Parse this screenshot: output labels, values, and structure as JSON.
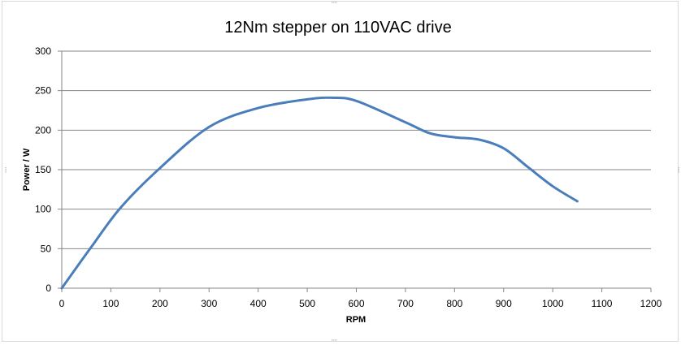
{
  "chart_data": {
    "type": "line",
    "title": "12Nm stepper on 110VAC drive",
    "xlabel": "RPM",
    "ylabel": "Power / W",
    "xlim": [
      0,
      1200
    ],
    "ylim": [
      0,
      300
    ],
    "xticks": [
      "0",
      "100",
      "200",
      "300",
      "400",
      "500",
      "600",
      "700",
      "800",
      "900",
      "1000",
      "1100",
      "1200"
    ],
    "yticks": [
      "0",
      "50",
      "100",
      "150",
      "200",
      "250",
      "300"
    ],
    "grid": {
      "horizontal": true,
      "vertical": false
    },
    "legend": "none",
    "series": [
      {
        "color": "#4a7ebb",
        "x": [
          0,
          60,
          120,
          200,
          300,
          400,
          500,
          550,
          600,
          700,
          750,
          800,
          850,
          900,
          950,
          1000,
          1050
        ],
        "y": [
          0,
          52,
          102,
          152,
          204,
          228,
          239,
          241,
          237,
          210,
          196,
          191,
          188,
          177,
          153,
          129,
          110
        ]
      }
    ]
  },
  "window": {
    "top_handle": "····",
    "bottom_handle": "····",
    "left_handle": "····",
    "right_handle": "····"
  }
}
